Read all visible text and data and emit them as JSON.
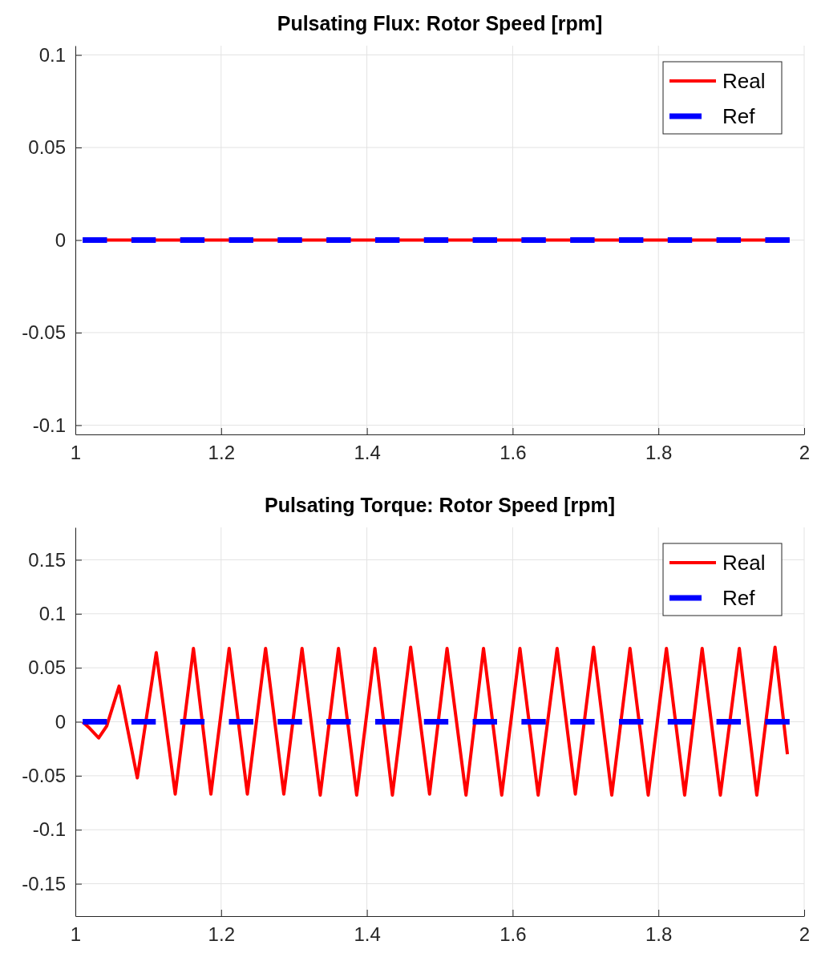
{
  "chart_data": [
    {
      "type": "line",
      "title": "Pulsating Flux: Rotor Speed [rpm]",
      "xlim": [
        1,
        2
      ],
      "xticks": [
        1,
        1.2,
        1.4,
        1.6,
        1.8,
        2
      ],
      "ylim": [
        -0.105,
        0.105
      ],
      "yticks": [
        -0.1,
        -0.05,
        0,
        0.05,
        0.1
      ],
      "grid": true,
      "legend": "top right",
      "marker": "none",
      "series": [
        {
          "name": "Real",
          "color": "#ff0000",
          "line_style": "solid",
          "x": [
            1.01,
            1.98
          ],
          "values": [
            0,
            0
          ]
        },
        {
          "name": "Ref",
          "color": "#0000ff",
          "line_style": "dashed",
          "x": [
            1.01,
            1.98
          ],
          "values": [
            0,
            0
          ]
        }
      ]
    },
    {
      "type": "line",
      "title": "Pulsating Torque: Rotor Speed [rpm]",
      "xlim": [
        1,
        2
      ],
      "xticks": [
        1,
        1.2,
        1.4,
        1.6,
        1.8,
        2
      ],
      "ylim": [
        -0.18,
        0.18
      ],
      "yticks": [
        -0.15,
        -0.1,
        -0.05,
        0,
        0.05,
        0.1,
        0.15
      ],
      "grid": true,
      "legend": "top right",
      "marker": "none",
      "series": [
        {
          "name": "Real",
          "color": "#ff0000",
          "line_style": "solid",
          "x": [
            1.01,
            1.018,
            1.032,
            1.043,
            1.06,
            1.085,
            1.111,
            1.137,
            1.162,
            1.186,
            1.211,
            1.236,
            1.261,
            1.286,
            1.311,
            1.336,
            1.361,
            1.386,
            1.411,
            1.435,
            1.46,
            1.486,
            1.51,
            1.536,
            1.56,
            1.585,
            1.61,
            1.635,
            1.661,
            1.686,
            1.711,
            1.736,
            1.761,
            1.786,
            1.811,
            1.836,
            1.86,
            1.885,
            1.911,
            1.935,
            1.96,
            1.977
          ],
          "values": [
            0,
            -0.005,
            -0.015,
            -0.004,
            0.033,
            -0.052,
            0.064,
            -0.067,
            0.068,
            -0.067,
            0.068,
            -0.067,
            0.068,
            -0.067,
            0.068,
            -0.068,
            0.068,
            -0.068,
            0.068,
            -0.068,
            0.069,
            -0.067,
            0.068,
            -0.068,
            0.068,
            -0.068,
            0.068,
            -0.068,
            0.068,
            -0.067,
            0.069,
            -0.068,
            0.068,
            -0.068,
            0.068,
            -0.068,
            0.068,
            -0.068,
            0.068,
            -0.068,
            0.069,
            -0.03
          ]
        },
        {
          "name": "Ref",
          "color": "#0000ff",
          "line_style": "dashed",
          "x": [
            1.01,
            1.98
          ],
          "values": [
            0,
            0
          ]
        }
      ]
    }
  ]
}
